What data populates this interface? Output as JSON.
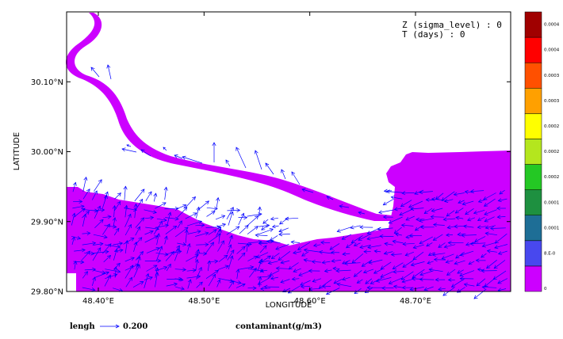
{
  "chart_data": {
    "type": "vector-field-map",
    "xlabel": "LONGITUDE",
    "ylabel": "LATITUDE",
    "xlim": [
      48.37,
      48.79
    ],
    "ylim": [
      29.8,
      30.2
    ],
    "x_ticks": [
      {
        "value": 48.4,
        "label": "48.40°E"
      },
      {
        "value": 48.5,
        "label": "48.50°E"
      },
      {
        "value": 48.6,
        "label": "48.60°E"
      },
      {
        "value": 48.7,
        "label": "48.70°E"
      }
    ],
    "y_ticks": [
      {
        "value": 29.8,
        "label": "29.80°N"
      },
      {
        "value": 29.9,
        "label": "29.90°N"
      },
      {
        "value": 30.0,
        "label": "30.00°N"
      },
      {
        "value": 30.1,
        "label": "30.10°N"
      }
    ],
    "annotations": [
      "Z (sigma_level) : 0",
      "T (days) : 0"
    ],
    "water_color": "#cc00ff",
    "arrow_color": "#0000ff",
    "vector_legend": {
      "label": "lengh",
      "value": "0.200"
    },
    "colorbar": {
      "title": "contaminant(g/m3)",
      "colors": [
        "#cc00ff",
        "#4848ee",
        "#1e6e96",
        "#1e9040",
        "#24c824",
        "#b4e61e",
        "#ffff00",
        "#ffa000",
        "#ff5000",
        "#ff0000",
        "#a00000"
      ],
      "labels": [
        "0",
        "8.E-0",
        "0.0001",
        "0.0001",
        "0.0002",
        "0.0002",
        "0.0002",
        "0.0003",
        "0.0003",
        "0.0004",
        "0.0004"
      ]
    }
  }
}
